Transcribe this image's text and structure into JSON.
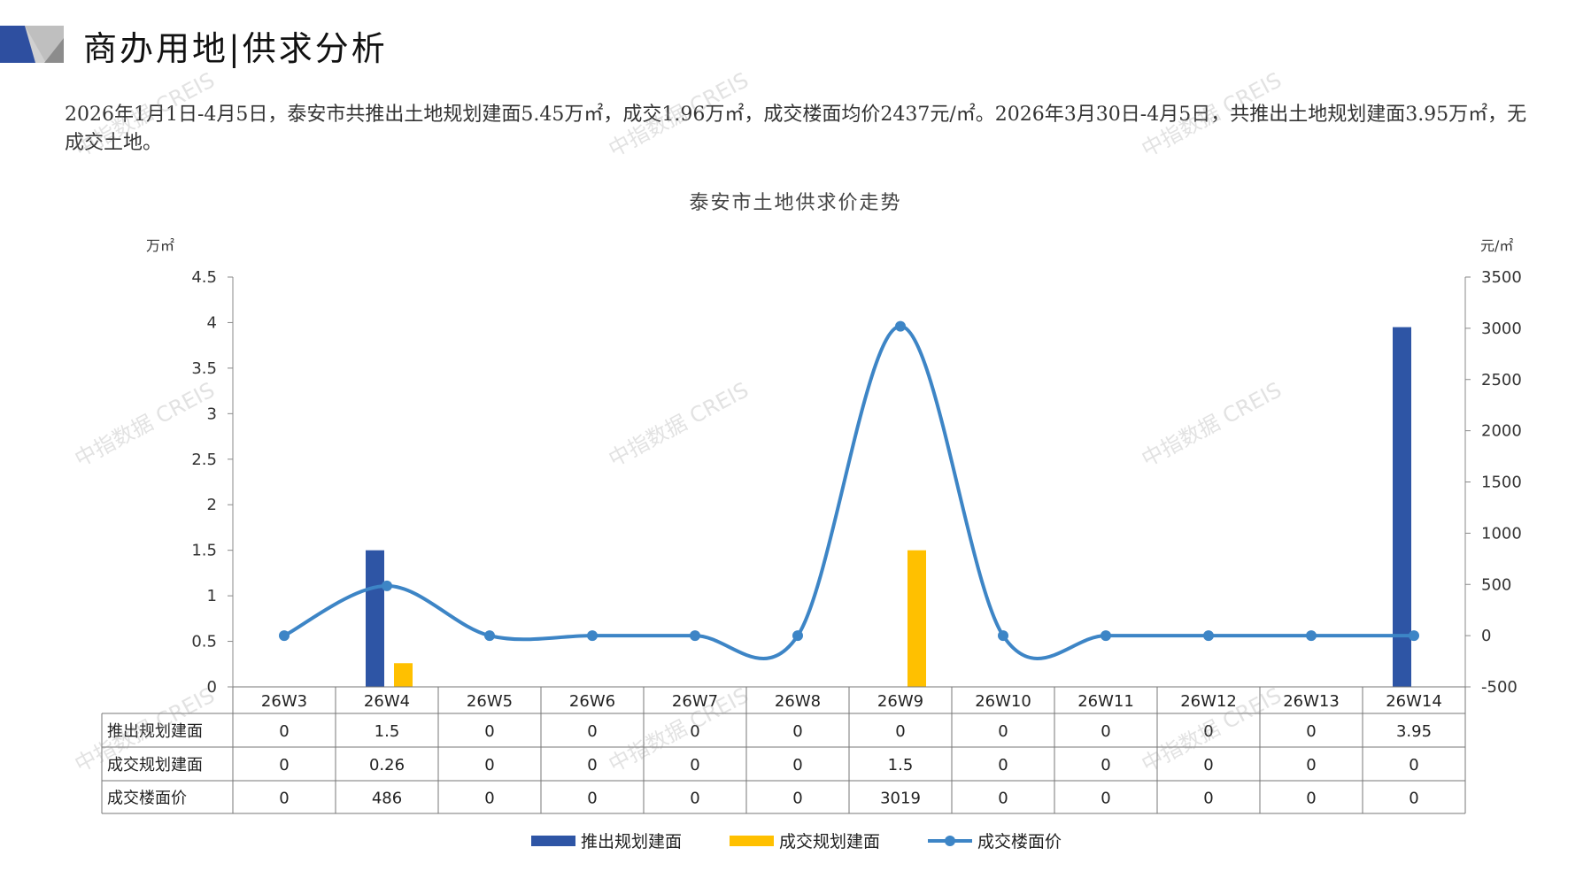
{
  "header": {
    "title": "商办用地|供求分析"
  },
  "summary": "2026年1月1日-4月5日，泰安市共推出土地规划建面5.45万㎡，成交1.96万㎡，成交楼面均价2437元/㎡。2026年3月30日-4月5日，共推出土地规划建面3.95万㎡，无成交土地。",
  "watermark": "中指数据 CREIS",
  "chart_data": {
    "type": "bar+line",
    "title": "泰安市土地供求价走势",
    "y_left_label": "万㎡",
    "y_right_label": "元/㎡",
    "y_left_lim": [
      0,
      4.5
    ],
    "y_left_ticks": [
      "0",
      "0.5",
      "1",
      "1.5",
      "2",
      "2.5",
      "3",
      "3.5",
      "4",
      "4.5"
    ],
    "y_right_lim": [
      -500,
      3500
    ],
    "y_right_ticks": [
      "-500",
      "0",
      "500",
      "1000",
      "1500",
      "2000",
      "2500",
      "3000",
      "3500"
    ],
    "categories": [
      "26W3",
      "26W4",
      "26W5",
      "26W6",
      "26W7",
      "26W8",
      "26W9",
      "26W10",
      "26W11",
      "26W12",
      "26W13",
      "26W14"
    ],
    "series": [
      {
        "name": "推出规划建面",
        "type": "bar",
        "axis": "left",
        "color": "#2E55A5",
        "values": [
          0,
          1.5,
          0,
          0,
          0,
          0,
          0,
          0,
          0,
          0,
          0,
          3.95
        ],
        "labels": [
          "0",
          "1.5",
          "0",
          "0",
          "0",
          "0",
          "0",
          "0",
          "0",
          "0",
          "0",
          "3.95"
        ]
      },
      {
        "name": "成交规划建面",
        "type": "bar",
        "axis": "left",
        "color": "#FFC000",
        "values": [
          0,
          0.26,
          0,
          0,
          0,
          0,
          1.5,
          0,
          0,
          0,
          0,
          0
        ],
        "labels": [
          "0",
          "0.26",
          "0",
          "0",
          "0",
          "0",
          "1.5",
          "0",
          "0",
          "0",
          "0",
          "0"
        ]
      },
      {
        "name": "成交楼面价",
        "type": "line",
        "axis": "right",
        "color": "#3D85C6",
        "values": [
          0,
          486,
          0,
          0,
          0,
          0,
          3019,
          0,
          0,
          0,
          0,
          0
        ],
        "labels": [
          "0",
          "486",
          "0",
          "0",
          "0",
          "0",
          "3019",
          "0",
          "0",
          "0",
          "0",
          "0"
        ]
      }
    ],
    "legend": "bottom",
    "data_table": true
  }
}
